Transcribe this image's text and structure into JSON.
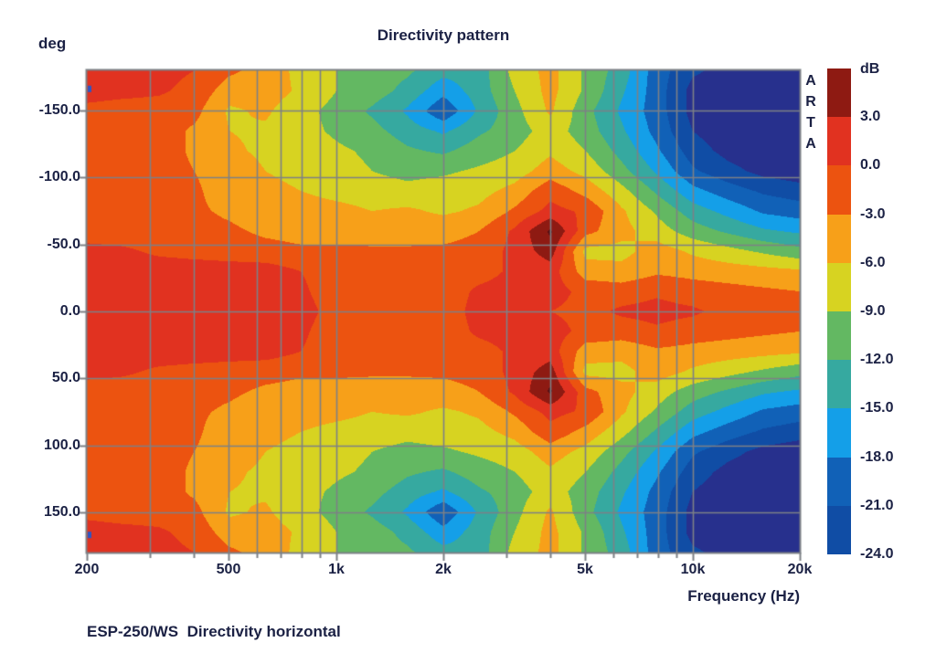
{
  "title": "Directivity pattern",
  "caption": "ESP-250/WS  Directivity horizontal",
  "watermark": "ARTA",
  "y_axis": {
    "unit_label": "deg",
    "tick_labels": [
      "-150.0",
      "-100.0",
      "-50.0",
      "0.0",
      "50.0",
      "100.0",
      "150.0"
    ],
    "tick_angles_deg": [
      -150,
      -100,
      -50,
      0,
      50,
      100,
      150
    ]
  },
  "x_axis": {
    "label": "Frequency (Hz)",
    "tick_labels": [
      "200",
      "500",
      "1k",
      "2k",
      "5k",
      "10k",
      "20k"
    ],
    "tick_frequencies_hz": [
      200,
      500,
      1000,
      2000,
      5000,
      10000,
      20000
    ]
  },
  "colorbar": {
    "unit_label": "dB",
    "tick_labels": [
      "3.0",
      "0.0",
      "-3.0",
      "-6.0",
      "-9.0",
      "-12.0",
      "-15.0",
      "-18.0",
      "-21.0",
      "-24.0"
    ],
    "segment_colors": [
      "#8e1a12",
      "#e13220",
      "#ec5310",
      "#f7a019",
      "#d7d321",
      "#63b862",
      "#36a9a0",
      "#149fe8",
      "#1161b7",
      "#104da5"
    ]
  },
  "chart_data": {
    "type": "heatmap",
    "title": "Directivity pattern",
    "xlabel": "Frequency (Hz)",
    "ylabel": "deg",
    "zlabel": "dB",
    "x_log_scale": true,
    "x_range_hz": [
      200,
      20000
    ],
    "y_range_deg": [
      -180,
      180
    ],
    "z_levels_db": {
      "max": 3,
      "min": -24,
      "step": 3
    },
    "grid_frequencies_hz": [
      300,
      400,
      500,
      600,
      700,
      800,
      900,
      1000,
      2000,
      3000,
      4000,
      5000,
      6000,
      7000,
      8000,
      9000,
      10000
    ],
    "grid_angles_deg": [
      -150,
      -100,
      -50,
      0,
      50,
      100,
      150
    ],
    "symmetry": "values mirrored about 0 deg",
    "frequencies_hz": [
      200,
      250,
      315,
      400,
      500,
      630,
      800,
      1000,
      1250,
      1600,
      2000,
      2500,
      3150,
      4000,
      5000,
      6300,
      8000,
      10000,
      12500,
      16000,
      20000
    ],
    "angles_deg_half": [
      0,
      15,
      30,
      45,
      60,
      75,
      90,
      105,
      120,
      135,
      150,
      165,
      180
    ],
    "values_db_half": [
      [
        1.5,
        1.5,
        1.5,
        1.5,
        1.5,
        1.5,
        1.0,
        -1.0,
        -1.5,
        -1.5,
        -1.5,
        1.0,
        1.5,
        0.0,
        -1.0,
        0.5,
        1.0,
        0.5,
        -1.0,
        -1.5,
        -1.5
      ],
      [
        1.5,
        1.5,
        1.5,
        1.5,
        1.5,
        1.5,
        0.5,
        -1.5,
        -1.5,
        -1.5,
        -1.5,
        0.5,
        1.0,
        1.5,
        -1.0,
        -1.5,
        -0.5,
        -1.5,
        -2.0,
        -2.5,
        -3.0
      ],
      [
        1.5,
        1.5,
        1.5,
        1.5,
        1.5,
        1.5,
        0.0,
        -1.5,
        -1.5,
        -1.5,
        -1.5,
        -1.0,
        0.5,
        1.5,
        -4.5,
        -5.0,
        -3.5,
        -4.0,
        -4.5,
        -5.0,
        -5.5
      ],
      [
        1.0,
        0.5,
        -0.5,
        -1.0,
        -1.5,
        -2.0,
        -2.5,
        -2.5,
        -2.5,
        -2.5,
        -2.5,
        -2.0,
        1.0,
        4.5,
        -7.0,
        -7.0,
        -4.5,
        -6.5,
        -8.0,
        -9.5,
        -11.0
      ],
      [
        -1.5,
        -1.5,
        -1.5,
        -2.0,
        -2.5,
        -3.5,
        -4.0,
        -4.0,
        -4.5,
        -4.5,
        -4.0,
        -3.0,
        0.5,
        6.5,
        -2.0,
        -5.0,
        -7.5,
        -10.5,
        -12.5,
        -14.5,
        -15.5
      ],
      [
        -1.5,
        -1.5,
        -1.5,
        -2.5,
        -3.5,
        -4.5,
        -4.5,
        -5.0,
        -6.0,
        -5.5,
        -6.5,
        -5.5,
        -2.5,
        1.0,
        -0.5,
        -5.5,
        -9.5,
        -13.5,
        -16.0,
        -18.5,
        -19.5
      ],
      [
        -1.5,
        -1.5,
        -1.5,
        -2.5,
        -4.5,
        -5.0,
        -6.0,
        -7.0,
        -7.5,
        -8.0,
        -7.5,
        -7.0,
        -5.0,
        -1.0,
        -4.0,
        -8.0,
        -12.5,
        -17.0,
        -19.5,
        -21.5,
        -22.5
      ],
      [
        -1.5,
        -1.5,
        -1.5,
        -3.0,
        -4.5,
        -6.0,
        -7.0,
        -8.0,
        -9.0,
        -10.0,
        -9.5,
        -8.5,
        -7.5,
        -4.5,
        -7.0,
        -11.0,
        -15.5,
        -20.5,
        -23.0,
        -25.0,
        -26.0
      ],
      [
        -1.5,
        -1.5,
        -1.5,
        -3.5,
        -5.5,
        -6.5,
        -7.5,
        -8.5,
        -9.5,
        -11.5,
        -12.5,
        -10.5,
        -9.0,
        -6.5,
        -9.0,
        -13.0,
        -17.5,
        -22.5,
        -25.0,
        -26.0,
        -26.0
      ],
      [
        -1.5,
        -1.5,
        -1.5,
        -3.5,
        -6.0,
        -6.5,
        -8.0,
        -9.5,
        -11.0,
        -13.5,
        -15.5,
        -12.5,
        -10.5,
        -7.5,
        -10.5,
        -14.5,
        -19.0,
        -24.0,
        -26.0,
        -26.0,
        -26.0
      ],
      [
        -1.0,
        -1.5,
        -1.5,
        -2.0,
        -6.5,
        -5.5,
        -8.0,
        -10.0,
        -12.5,
        -15.5,
        -20.5,
        -14.5,
        -10.0,
        -5.5,
        -11.0,
        -15.5,
        -19.5,
        -25.0,
        -26.0,
        -26.0,
        -26.0
      ],
      [
        1.5,
        1.0,
        0.5,
        -1.0,
        -4.5,
        -4.5,
        -6.5,
        -9.0,
        -10.5,
        -13.0,
        -17.0,
        -13.5,
        -9.0,
        -5.0,
        -9.5,
        -14.5,
        -19.5,
        -25.0,
        -26.0,
        -26.0,
        -26.0
      ],
      [
        1.5,
        1.5,
        1.0,
        0.0,
        -2.5,
        -4.0,
        -7.0,
        -9.0,
        -10.5,
        -11.5,
        -14.0,
        -13.5,
        -8.0,
        -5.0,
        -9.5,
        -13.5,
        -19.5,
        -23.5,
        -25.0,
        -26.0,
        -26.0
      ]
    ],
    "band_thresholds_db": [
      6,
      3,
      0,
      -3,
      -6,
      -9,
      -12,
      -15,
      -18,
      -21,
      -24
    ],
    "band_colors_high_to_low": [
      "#5a1013",
      "#8e1a12",
      "#e13220",
      "#ec5310",
      "#f7a019",
      "#d7d321",
      "#63b862",
      "#36a9a0",
      "#149fe8",
      "#1161b7",
      "#104da5",
      "#27308d"
    ],
    "grid_color": "#7d8086",
    "cursor_marker_color": "#2f55c4",
    "cursor_marker_angles_deg": [
      -166.5,
      166.5
    ],
    "legend_position": "right"
  }
}
